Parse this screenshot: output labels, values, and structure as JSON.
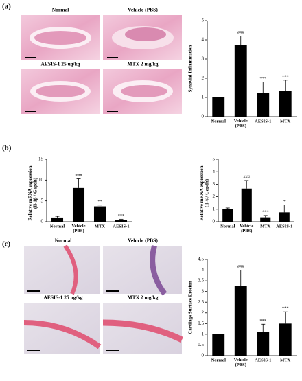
{
  "panel_labels": [
    "(a)",
    "(b)",
    "(c)"
  ],
  "image_labels": {
    "a": [
      "Normal",
      "Vehicle (PBS)",
      "AESIS-1 25 ug/kg",
      "MTX 2 mg/kg"
    ],
    "c": [
      "Normal",
      "Vehicle (PBS)",
      "AESIS-1 25 ug/kg",
      "MTX 2 mg/kg"
    ]
  },
  "chart_data": [
    {
      "type": "bar",
      "ylabel": "Synovial Inflammation",
      "categories": [
        "Normal",
        "Vehicle\n(PBS)",
        "AESIS-1",
        "MTX"
      ],
      "values": [
        1.0,
        3.75,
        1.25,
        1.35
      ],
      "errors": [
        0,
        0.45,
        0.55,
        0.55
      ],
      "annotations": [
        null,
        "###",
        "***",
        "***"
      ],
      "color": "#000000",
      "ylim": [
        0,
        5
      ],
      "yticks": [
        0,
        1,
        2,
        3,
        4,
        5
      ]
    },
    {
      "type": "bar",
      "ylabel": "Relative mRNA expression\n(Il-1β / Gapdh)",
      "categories": [
        "Normal",
        "Vehicle\n(PBS)",
        "MTX",
        "AESIS-1"
      ],
      "values": [
        1.0,
        8.1,
        3.7,
        0.4
      ],
      "errors": [
        0.3,
        2.2,
        0.3,
        0.2
      ],
      "annotations": [
        null,
        "###",
        "**",
        "***"
      ],
      "color": "#000000",
      "ylim": [
        0,
        15
      ],
      "yticks": [
        0,
        5,
        10,
        15
      ]
    },
    {
      "type": "bar",
      "ylabel": "Relative mRNA expression\n(Il-6 / Gapdh)",
      "categories": [
        "Normal",
        "Vehicle\n(PBS)",
        "MTX",
        "AESIS-1"
      ],
      "values": [
        1.0,
        2.65,
        0.35,
        0.75
      ],
      "errors": [
        0.1,
        0.65,
        0.15,
        0.6
      ],
      "annotations": [
        null,
        "###",
        "***",
        "*"
      ],
      "color": "#000000",
      "ylim": [
        0,
        5
      ],
      "yticks": [
        0,
        1,
        2,
        3,
        4,
        5
      ]
    },
    {
      "type": "bar",
      "ylabel": "Cartilage Surface Erosion",
      "categories": [
        "Normal",
        "Vehicle\n(PBS)",
        "AESIS-1",
        "MTX"
      ],
      "values": [
        1.0,
        3.25,
        1.12,
        1.5
      ],
      "errors": [
        0,
        0.75,
        0.35,
        0.55
      ],
      "annotations": [
        null,
        "###",
        "***",
        "***"
      ],
      "color": "#000000",
      "ylim": [
        0,
        4.5
      ],
      "yticks": [
        0,
        0.5,
        1,
        1.5,
        2,
        2.5,
        3,
        3.5,
        4,
        4.5
      ]
    }
  ]
}
